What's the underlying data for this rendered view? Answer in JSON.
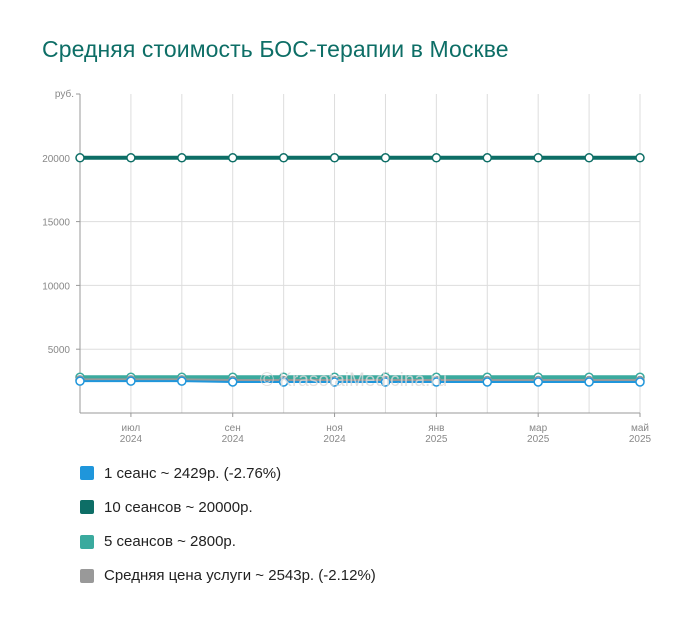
{
  "page": {
    "title": "Средняя стоимость БОС-терапии в Москве",
    "watermark": "© KrasotaiMedicina.ru"
  },
  "legend": [
    {
      "label": "1 сеанс ~ 2429р. (-2.76%)",
      "color": "#1f96db"
    },
    {
      "label": "10 сеансов ~ 20000р.",
      "color": "#0d6e66"
    },
    {
      "label": "5 сеансов ~ 2800р.",
      "color": "#3aaa9e"
    },
    {
      "label": "Средняя цена услуги ~ 2543р. (-2.12%)",
      "color": "#999999"
    }
  ],
  "chart_data": {
    "type": "line",
    "ylabel": "руб.",
    "ylim": [
      0,
      25000
    ],
    "yticks": [
      5000,
      10000,
      15000,
      20000
    ],
    "grid": true,
    "x": [
      "2024-06",
      "2024-07",
      "2024-08",
      "2024-09",
      "2024-10",
      "2024-11",
      "2024-12",
      "2025-01",
      "2025-02",
      "2025-03",
      "2025-04",
      "2025-05"
    ],
    "xtick_labels": [
      {
        "index": 1,
        "month": "июл",
        "year": "2024"
      },
      {
        "index": 3,
        "month": "сен",
        "year": "2024"
      },
      {
        "index": 5,
        "month": "ноя",
        "year": "2024"
      },
      {
        "index": 7,
        "month": "янв",
        "year": "2025"
      },
      {
        "index": 9,
        "month": "мар",
        "year": "2025"
      },
      {
        "index": 11,
        "month": "май",
        "year": "2025"
      }
    ],
    "series": [
      {
        "name": "1 сеанс",
        "color": "#1f96db",
        "values": [
          2498,
          2498,
          2498,
          2429,
          2429,
          2429,
          2429,
          2429,
          2429,
          2429,
          2429,
          2429
        ]
      },
      {
        "name": "10 сеансов",
        "color": "#0d6e66",
        "values": [
          20000,
          20000,
          20000,
          20000,
          20000,
          20000,
          20000,
          20000,
          20000,
          20000,
          20000,
          20000
        ]
      },
      {
        "name": "5 сеансов",
        "color": "#3aaa9e",
        "values": [
          2800,
          2800,
          2800,
          2800,
          2800,
          2800,
          2800,
          2800,
          2800,
          2800,
          2800,
          2800
        ]
      },
      {
        "name": "Средняя цена услуги",
        "color": "#999999",
        "values": [
          2598,
          2598,
          2598,
          2543,
          2543,
          2543,
          2543,
          2543,
          2543,
          2543,
          2543,
          2543
        ]
      }
    ]
  }
}
